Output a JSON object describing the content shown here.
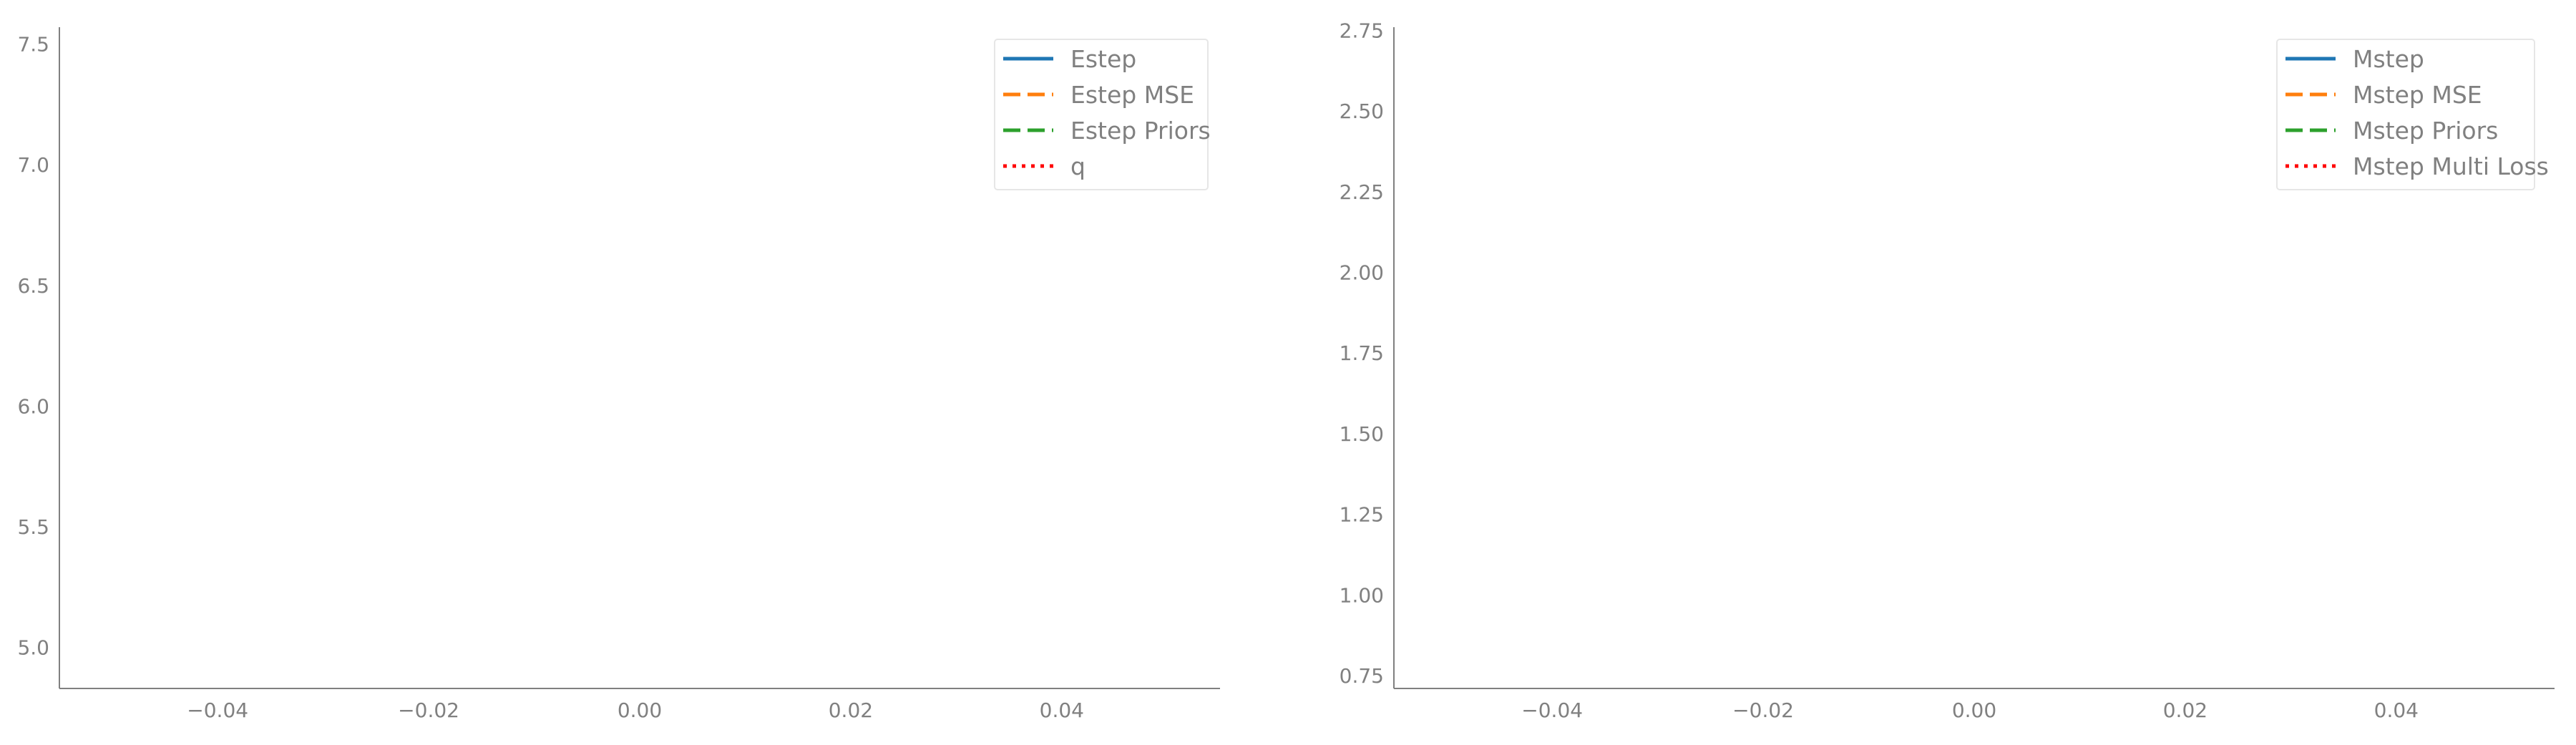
{
  "chart_data": [
    {
      "type": "line",
      "title": "",
      "xlabel": "",
      "ylabel": "",
      "xlim": [
        -0.055,
        0.055
      ],
      "ylim": [
        4.83,
        7.57
      ],
      "x_ticks": [
        "−0.04",
        "−0.02",
        "0.00",
        "0.02",
        "0.04"
      ],
      "x_tick_values": [
        -0.04,
        -0.02,
        0.0,
        0.02,
        0.04
      ],
      "y_ticks": [
        "5.0",
        "5.5",
        "6.0",
        "6.5",
        "7.0",
        "7.5"
      ],
      "y_tick_values": [
        5.0,
        5.5,
        6.0,
        6.5,
        7.0,
        7.5
      ],
      "grid": false,
      "legend_position": "top-right",
      "series": [
        {
          "name": "Estep",
          "color": "#1f77b4",
          "style": "solid",
          "x": [],
          "y": []
        },
        {
          "name": "Estep MSE",
          "color": "#ff7f0e",
          "style": "dashed",
          "x": [],
          "y": []
        },
        {
          "name": "Estep Priors",
          "color": "#2ca02c",
          "style": "dashed",
          "x": [],
          "y": []
        },
        {
          "name": "q",
          "color": "#ff0000",
          "style": "dotted",
          "x": [],
          "y": []
        }
      ]
    },
    {
      "type": "line",
      "title": "",
      "xlabel": "",
      "ylabel": "",
      "xlim": [
        -0.055,
        0.055
      ],
      "ylim": [
        0.71,
        2.76
      ],
      "x_ticks": [
        "−0.04",
        "−0.02",
        "0.00",
        "0.02",
        "0.04"
      ],
      "x_tick_values": [
        -0.04,
        -0.02,
        0.0,
        0.02,
        0.04
      ],
      "y_ticks": [
        "0.75",
        "1.00",
        "1.25",
        "1.50",
        "1.75",
        "2.00",
        "2.25",
        "2.50",
        "2.75"
      ],
      "y_tick_values": [
        0.75,
        1.0,
        1.25,
        1.5,
        1.75,
        2.0,
        2.25,
        2.5,
        2.75
      ],
      "grid": false,
      "legend_position": "top-right",
      "series": [
        {
          "name": "Mstep",
          "color": "#1f77b4",
          "style": "solid",
          "x": [],
          "y": []
        },
        {
          "name": "Mstep MSE",
          "color": "#ff7f0e",
          "style": "dashed",
          "x": [],
          "y": []
        },
        {
          "name": "Mstep Priors",
          "color": "#2ca02c",
          "style": "dashed",
          "x": [],
          "y": []
        },
        {
          "name": "Mstep Multi Loss",
          "color": "#ff0000",
          "style": "dotted",
          "x": [],
          "y": []
        }
      ]
    }
  ],
  "colors": {
    "axis": "#808080",
    "tick_text": "#808080",
    "legend_border": "#e6e6e6"
  }
}
